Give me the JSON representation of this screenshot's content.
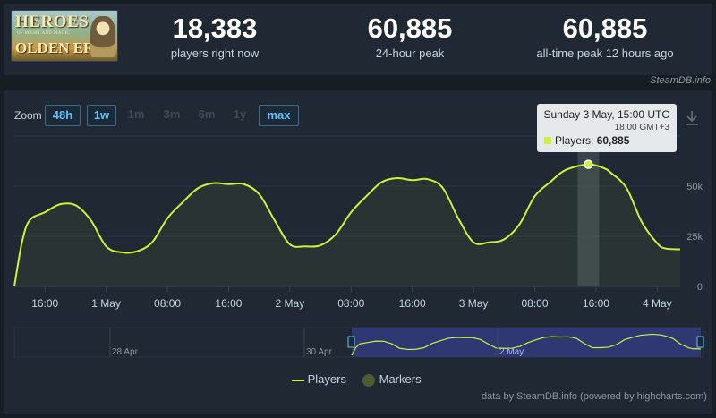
{
  "game": {
    "logo_line1": "HEROES",
    "logo_line0": "OF MIGHT AND MAGIC",
    "logo_line2": "OLDEN ERA"
  },
  "stats": [
    {
      "value": "18,383",
      "label": "players right now"
    },
    {
      "value": "60,885",
      "label": "24-hour peak"
    },
    {
      "value": "60,885",
      "label": "all-time peak 12 hours ago"
    }
  ],
  "brand": "SteamDB.info",
  "zoom": {
    "label": "Zoom",
    "buttons": [
      "48h",
      "1w",
      "1m",
      "3m",
      "6m",
      "1y",
      "max"
    ],
    "active": [
      "48h",
      "1w",
      "max"
    ]
  },
  "tooltip": {
    "date": "Sunday 3 May, 15:00 UTC",
    "local": "18:00 GMT+3",
    "series": "Players",
    "value": "60,885"
  },
  "legend": {
    "players": "Players",
    "markers": "Markers"
  },
  "credit": "data by SteamDB.info (powered by highcharts.com)",
  "colors": {
    "line": "#cdf23a",
    "background": "#1f2833",
    "accent": "#67c1f5",
    "navigator": "#2f3873"
  },
  "chart_data": {
    "type": "line",
    "series": [
      {
        "name": "Players",
        "points": [
          [
            "04-30 12:00",
            0
          ],
          [
            "04-30 13:00",
            22000
          ],
          [
            "04-30 14:00",
            33000
          ],
          [
            "04-30 16:00",
            37000
          ],
          [
            "04-30 18:00",
            41000
          ],
          [
            "04-30 20:00",
            40500
          ],
          [
            "04-30 22:00",
            33000
          ],
          [
            "05-01 00:00",
            20000
          ],
          [
            "05-01 02:00",
            17000
          ],
          [
            "05-01 04:00",
            17500
          ],
          [
            "05-01 06:00",
            22000
          ],
          [
            "05-01 08:00",
            34000
          ],
          [
            "05-01 10:00",
            42000
          ],
          [
            "05-01 12:00",
            49000
          ],
          [
            "05-01 14:00",
            51500
          ],
          [
            "05-01 16:00",
            51000
          ],
          [
            "05-01 18:00",
            51000
          ],
          [
            "05-01 20:00",
            46000
          ],
          [
            "05-01 22:00",
            33000
          ],
          [
            "05-02 00:00",
            21000
          ],
          [
            "05-02 02:00",
            20000
          ],
          [
            "05-02 04:00",
            20500
          ],
          [
            "05-02 06:00",
            26000
          ],
          [
            "05-02 08:00",
            37000
          ],
          [
            "05-02 10:00",
            45000
          ],
          [
            "05-02 12:00",
            52000
          ],
          [
            "05-02 14:00",
            54000
          ],
          [
            "05-02 16:00",
            53000
          ],
          [
            "05-02 18:00",
            53500
          ],
          [
            "05-02 20:00",
            49000
          ],
          [
            "05-02 22:00",
            34000
          ],
          [
            "05-03 00:00",
            22000
          ],
          [
            "05-03 02:00",
            22000
          ],
          [
            "05-03 04:00",
            23500
          ],
          [
            "05-03 06:00",
            31000
          ],
          [
            "05-03 08:00",
            45000
          ],
          [
            "05-03 10:00",
            52000
          ],
          [
            "05-03 12:00",
            58000
          ],
          [
            "05-03 15:00",
            60885
          ],
          [
            "05-03 17:00",
            59000
          ],
          [
            "05-03 18:00",
            56500
          ],
          [
            "05-03 20:00",
            49000
          ],
          [
            "05-03 22:00",
            32000
          ],
          [
            "05-04 00:00",
            21500
          ],
          [
            "05-04 01:00",
            19000
          ],
          [
            "05-04 03:00",
            18500
          ]
        ]
      }
    ],
    "highlighted_point": [
      "05-03 15:00",
      60885
    ],
    "x_ticks": [
      "16:00",
      "1 May",
      "08:00",
      "16:00",
      "2 May",
      "08:00",
      "16:00",
      "3 May",
      "08:00",
      "16:00",
      "4 May"
    ],
    "y_ticks": [
      "0",
      "25k",
      "50k"
    ],
    "ylim": [
      0,
      75000
    ],
    "grid": true,
    "navigator_labels": [
      "28 Apr",
      "30 Apr",
      "2 May"
    ]
  }
}
